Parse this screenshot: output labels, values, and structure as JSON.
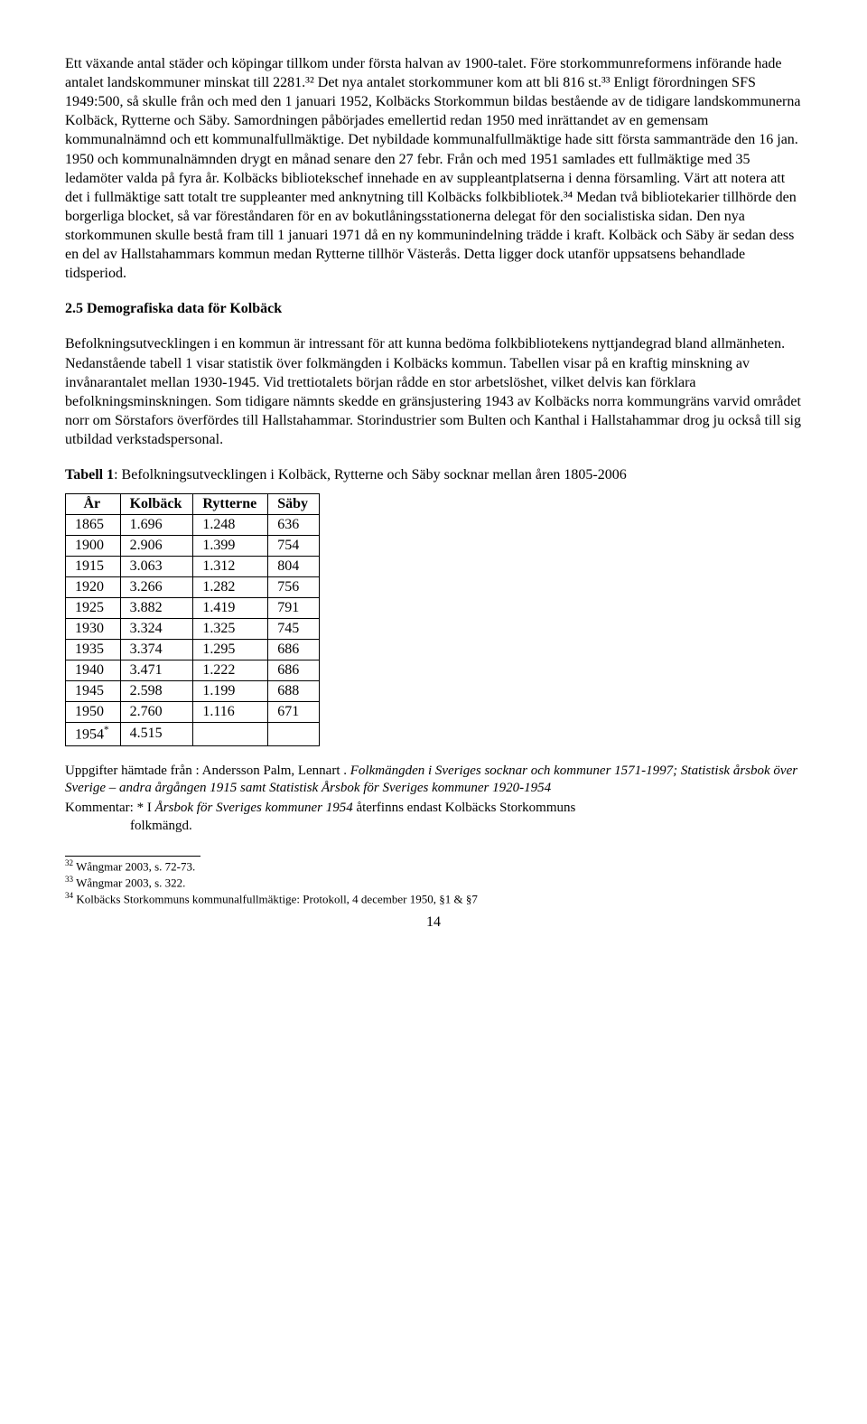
{
  "para1": "Ett växande antal städer och köpingar tillkom under första halvan av 1900-talet. Före storkommunreformens införande hade antalet landskommuner minskat till 2281.³² Det nya antalet storkommuner kom att bli 816 st.³³ Enligt förordningen SFS 1949:500, så skulle från och med den 1 januari 1952, Kolbäcks Storkommun bildas bestående av de tidigare landskommunerna Kolbäck, Rytterne och Säby. Samordningen påbörjades emellertid redan 1950 med inrättandet av en gemensam kommunalnämnd och ett kommunalfullmäktige. Det nybildade kommunalfullmäktige hade sitt första sammanträde den 16 jan. 1950 och kommunalnämnden drygt en månad senare den 27 febr. Från och med 1951 samlades ett fullmäktige med 35 ledamöter valda på fyra år. Kolbäcks bibliotekschef innehade en av suppleantplatserna i denna församling. Värt att notera att det i fullmäktige satt totalt tre suppleanter med anknytning till Kolbäcks folkbibliotek.³⁴ Medan två bibliotekarier tillhörde den borgerliga blocket, så var föreståndaren för en av bokutlåningsstationerna delegat för den socialistiska sidan. Den nya storkommunen skulle bestå fram till 1 januari 1971 då en ny kommunindelning trädde i kraft. Kolbäck och Säby är sedan dess en del av Hallstahammars kommun medan Rytterne tillhör Västerås. Detta ligger dock utanför uppsatsens behandlade tidsperiod.",
  "heading25": "2.5 Demografiska data för Kolbäck",
  "para2": "Befolkningsutvecklingen i en kommun är intressant för att kunna bedöma folkbibliotekens nyttjandegrad bland allmänheten. Nedanstående tabell 1 visar statistik över folkmängden i Kolbäcks kommun. Tabellen visar på en kraftig minskning av invånarantalet mellan 1930-1945. Vid trettiotalets början rådde en stor arbetslöshet, vilket delvis kan förklara befolkningsminskningen. Som tidigare nämnts skedde en gränsjustering 1943 av Kolbäcks norra kommungräns varvid området norr om Sörstafors överfördes till Hallstahammar. Storindustrier som Bulten och Kanthal i Hallstahammar drog ju också till sig utbildad verkstadspersonal.",
  "tableCaptionBold": "Tabell 1",
  "tableCaptionRest": ": Befolkningsutvecklingen i Kolbäck, Rytterne och Säby socknar mellan åren 1805-2006",
  "table": {
    "columns": [
      "År",
      "Kolbäck",
      "Rytterne",
      "Säby"
    ],
    "rows": [
      [
        "1865",
        "1.696",
        "1.248",
        "636"
      ],
      [
        "1900",
        "2.906",
        "1.399",
        "754"
      ],
      [
        "1915",
        "3.063",
        "1.312",
        "804"
      ],
      [
        "1920",
        "3.266",
        "1.282",
        "756"
      ],
      [
        "1925",
        "3.882",
        "1.419",
        "791"
      ],
      [
        "1930",
        "3.324",
        "1.325",
        "745"
      ],
      [
        "1935",
        "3.374",
        "1.295",
        "686"
      ],
      [
        "1940",
        "3.471",
        "1.222",
        "686"
      ],
      [
        "1945",
        "2.598",
        "1.199",
        "688"
      ],
      [
        "1950",
        "2.760",
        "1.116",
        "671"
      ],
      [
        "1954*",
        "4.515",
        "",
        ""
      ]
    ]
  },
  "sourceLine1a": "Uppgifter hämtade från : Andersson Palm, Lennart . ",
  "sourceLine1b": "Folkmängden i Sveriges socknar och kommuner 1571-1997; Statistisk årsbok över Sverige – andra årgången 1915 samt Statistisk Årsbok för Sveriges kommuner 1920-1954",
  "sourceLine2a": "Kommentar: *  I  ",
  "sourceLine2b": "Årsbok för Sveriges kommuner 1954",
  "sourceLine2c": " återfinns endast Kolbäcks Storkommuns",
  "sourceLine2d": "folkmängd.",
  "footnotes": [
    {
      "num": "32",
      "text": " Wångmar 2003, s. 72-73."
    },
    {
      "num": "33",
      "text": " Wångmar 2003, s. 322."
    },
    {
      "num": "34",
      "text": " Kolbäcks Storkommuns kommunalfullmäktige: Protokoll,  4 december 1950, §1 & §7"
    }
  ],
  "pageNumber": "14"
}
